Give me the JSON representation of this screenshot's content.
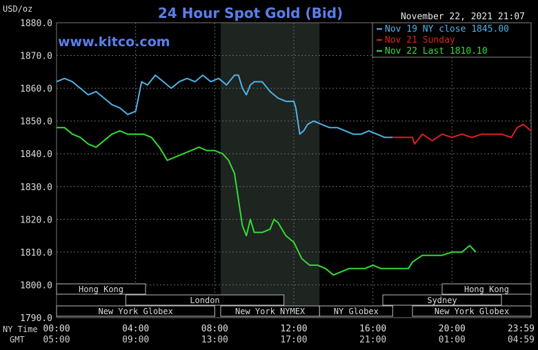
{
  "chart_data": {
    "type": "line",
    "title": "24 Hour Spot Gold (Bid)",
    "units_label": "USD/oz",
    "watermark": "www.kitco.com",
    "timestamp": "November 22, 2021 21:07",
    "ylim": [
      1790,
      1880
    ],
    "xlim": [
      0,
      24
    ],
    "grid": true,
    "legend_position": "top-right",
    "y_ticks": [
      {
        "value": 1880,
        "label": "1880.0"
      },
      {
        "value": 1870,
        "label": "1870.0"
      },
      {
        "value": 1860,
        "label": "1860.0"
      },
      {
        "value": 1850,
        "label": "1850.0"
      },
      {
        "value": 1840,
        "label": "1840.0"
      },
      {
        "value": 1830,
        "label": "1830.0"
      },
      {
        "value": 1820,
        "label": "1820.0"
      },
      {
        "value": 1810,
        "label": "1810.0"
      },
      {
        "value": 1800,
        "label": "1800.0"
      },
      {
        "value": 1790,
        "label": "1790.0"
      }
    ],
    "x_axis_label_ny": "NY Time",
    "x_axis_label_gmt": "GMT",
    "x_ticks": [
      {
        "value": 0,
        "ny": "00:00",
        "gmt": "05:00"
      },
      {
        "value": 4,
        "ny": "04:00",
        "gmt": "09:00"
      },
      {
        "value": 8,
        "ny": "08:00",
        "gmt": "13:00"
      },
      {
        "value": 12,
        "ny": "12:00",
        "gmt": "17:00"
      },
      {
        "value": 16,
        "ny": "16:00",
        "gmt": "21:00"
      },
      {
        "value": 20,
        "ny": "20:00",
        "gmt": "01:00"
      },
      {
        "value": 23.983,
        "ny": "23:59",
        "gmt": "04:59"
      }
    ],
    "highlight_range": [
      8.3,
      13.3
    ],
    "sessions": [
      {
        "label": "Hong Kong",
        "start": 0,
        "end": 4.5,
        "row": 0
      },
      {
        "label": "Hong Kong",
        "start": 19.5,
        "end": 24,
        "row": 0
      },
      {
        "label": "London",
        "start": 3.5,
        "end": 11.5,
        "row": 1
      },
      {
        "label": "Sydney",
        "start": 16.5,
        "end": 22.5,
        "row": 1
      },
      {
        "label": "New York Globex",
        "start": 0,
        "end": 8.0,
        "row": 2
      },
      {
        "label": "New York NYMEX",
        "start": 8.3,
        "end": 13.3,
        "row": 2
      },
      {
        "label": "NY Globex",
        "start": 13.3,
        "end": 17.0,
        "row": 2
      },
      {
        "label": "New York Globex",
        "start": 18.0,
        "end": 24,
        "row": 2
      }
    ],
    "series": [
      {
        "name": "Nov 19 NY close 1845.00",
        "color": "#4fb3e8",
        "x": [
          0,
          0.4,
          0.8,
          1.2,
          1.6,
          2.0,
          2.4,
          2.8,
          3.2,
          3.6,
          4.0,
          4.3,
          4.6,
          5.0,
          5.4,
          5.8,
          6.2,
          6.6,
          7.0,
          7.4,
          7.8,
          8.2,
          8.6,
          9.0,
          9.2,
          9.4,
          9.6,
          9.8,
          10.0,
          10.4,
          10.8,
          11.2,
          11.6,
          12.0,
          12.1,
          12.3,
          12.5,
          12.7,
          13.0,
          13.4,
          13.8,
          14.2,
          14.6,
          15.0,
          15.4,
          15.8,
          16.2,
          16.6,
          17.0
        ],
        "y": [
          1862,
          1863,
          1862,
          1860,
          1858,
          1859,
          1857,
          1855,
          1854,
          1852,
          1853,
          1862,
          1861,
          1864,
          1862,
          1860,
          1862,
          1863,
          1862,
          1864,
          1862,
          1863,
          1861,
          1864,
          1864,
          1860,
          1858,
          1861,
          1862,
          1862,
          1859,
          1857,
          1856,
          1856,
          1854,
          1846,
          1847,
          1849,
          1850,
          1849,
          1848,
          1848,
          1847,
          1846,
          1846,
          1847,
          1846,
          1845,
          1845
        ]
      },
      {
        "name": "Nov 21 Sunday",
        "color": "#e02020",
        "x": [
          17.0,
          17.5,
          18.0,
          18.1,
          18.5,
          19.0,
          19.5,
          20.0,
          20.5,
          21.0,
          21.5,
          22.0,
          22.5,
          23.0,
          23.3,
          23.6,
          24.0
        ],
        "y": [
          1845,
          1845,
          1845,
          1843,
          1846,
          1844,
          1846,
          1845,
          1846,
          1845,
          1846,
          1846,
          1846,
          1845,
          1848,
          1849,
          1847
        ]
      },
      {
        "name": "Nov 22 Last 1810.10",
        "color": "#33dd33",
        "x": [
          0,
          0.4,
          0.8,
          1.2,
          1.6,
          2.0,
          2.4,
          2.8,
          3.2,
          3.6,
          4.0,
          4.4,
          4.8,
          5.2,
          5.6,
          6.0,
          6.4,
          6.8,
          7.2,
          7.6,
          8.0,
          8.4,
          8.7,
          9.0,
          9.2,
          9.4,
          9.6,
          9.8,
          10.0,
          10.4,
          10.8,
          11.0,
          11.2,
          11.6,
          12.0,
          12.4,
          12.8,
          13.2,
          13.6,
          14.0,
          14.4,
          14.8,
          15.2,
          15.6,
          16.0,
          16.4,
          16.8,
          17.0,
          17.4,
          17.8,
          18.0,
          18.5,
          19.0,
          19.5,
          20.0,
          20.5,
          20.9,
          21.2
        ],
        "y": [
          1848,
          1848,
          1846,
          1845,
          1843,
          1842,
          1844,
          1846,
          1847,
          1846,
          1846,
          1846,
          1845,
          1842,
          1838,
          1839,
          1840,
          1841,
          1842,
          1841,
          1841,
          1840,
          1838,
          1834,
          1826,
          1818,
          1815,
          1820,
          1816,
          1816,
          1817,
          1820,
          1819,
          1815,
          1813,
          1808,
          1806,
          1806,
          1805,
          1803,
          1804,
          1805,
          1805,
          1805,
          1806,
          1805,
          1805,
          1805,
          1805,
          1805,
          1807,
          1809,
          1809,
          1809,
          1810,
          1810,
          1812,
          1810
        ]
      }
    ]
  }
}
